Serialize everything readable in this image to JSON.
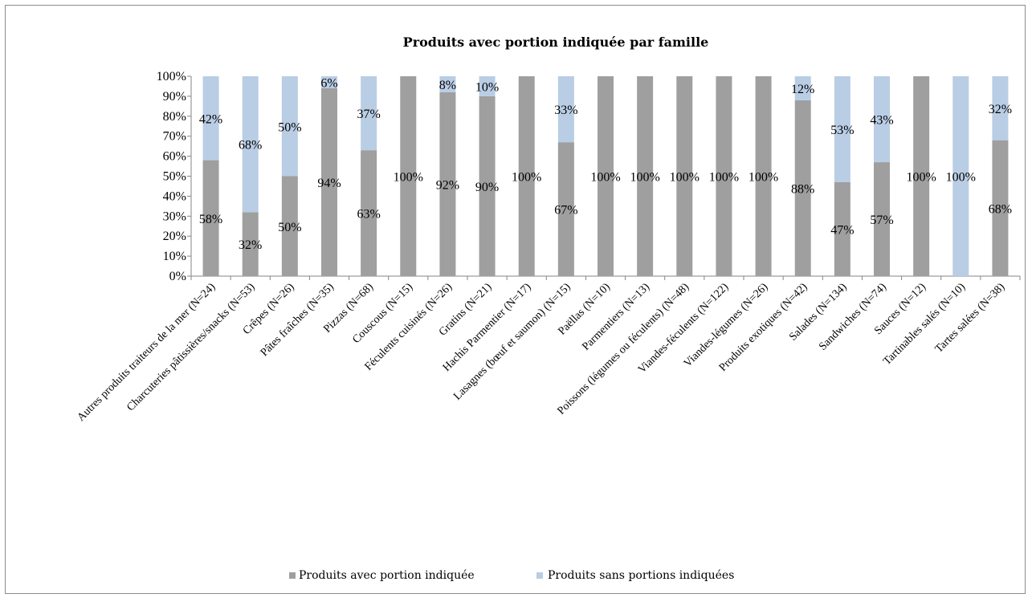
{
  "chart_data": {
    "type": "bar",
    "stacked": true,
    "title": "Produits avec portion indiquée par famille",
    "xlabel": "",
    "ylabel": "",
    "ylim": [
      0,
      100
    ],
    "y_ticks": [
      "0%",
      "10%",
      "20%",
      "30%",
      "40%",
      "50%",
      "60%",
      "70%",
      "80%",
      "90%",
      "100%"
    ],
    "grid": false,
    "legend_position": "bottom",
    "categories": [
      "Autres produits traiteurs de la mer (N=24)",
      "Charcuteries pâtissières/snacks (N=53)",
      "Crêpes (N=26)",
      "Pâtes fraîches (N=35)",
      "Pizzas (N=68)",
      "Couscous (N=15)",
      "Féculents cuisinés (N=26)",
      "Gratins (N=21)",
      "Hachis Parmentier (N=17)",
      "Lasagnes (bœuf et saumon) (N=15)",
      "Paëllas (N=10)",
      "Parmentiers (N=13)",
      "Poissons (légumes ou féculents) (N=48)",
      "Viandes-féculents (N=122)",
      "Viandes-légumes (N=26)",
      "Produits exotiques (N=42)",
      "Salades (N=134)",
      "Sandwiches (N=74)",
      "Sauces (N=12)",
      "Tartinables salés (N=10)",
      "Tartes salées (N=38)"
    ],
    "series": [
      {
        "name": "Produits avec portion indiquée",
        "color": "#9f9f9f",
        "values": [
          58,
          32,
          50,
          94,
          63,
          100,
          92,
          90,
          100,
          67,
          100,
          100,
          100,
          100,
          100,
          88,
          47,
          57,
          100,
          0,
          68
        ],
        "labels": [
          "58%",
          "32%",
          "50%",
          "94%",
          "63%",
          "100%",
          "92%",
          "90%",
          "100%",
          "67%",
          "100%",
          "100%",
          "100%",
          "100%",
          "100%",
          "88%",
          "47%",
          "57%",
          "100%",
          "",
          "68%"
        ]
      },
      {
        "name": "Produits sans portions indiquées",
        "color": "#b9cde5",
        "values": [
          42,
          68,
          50,
          6,
          37,
          0,
          8,
          10,
          0,
          33,
          0,
          0,
          0,
          0,
          0,
          12,
          53,
          43,
          0,
          100,
          32
        ],
        "labels": [
          "42%",
          "68%",
          "50%",
          "6%",
          "37%",
          "",
          "8%",
          "10%",
          "",
          "33%",
          "",
          "",
          "",
          "",
          "",
          "12%",
          "53%",
          "43%",
          "",
          "100%",
          "32%"
        ]
      }
    ]
  }
}
